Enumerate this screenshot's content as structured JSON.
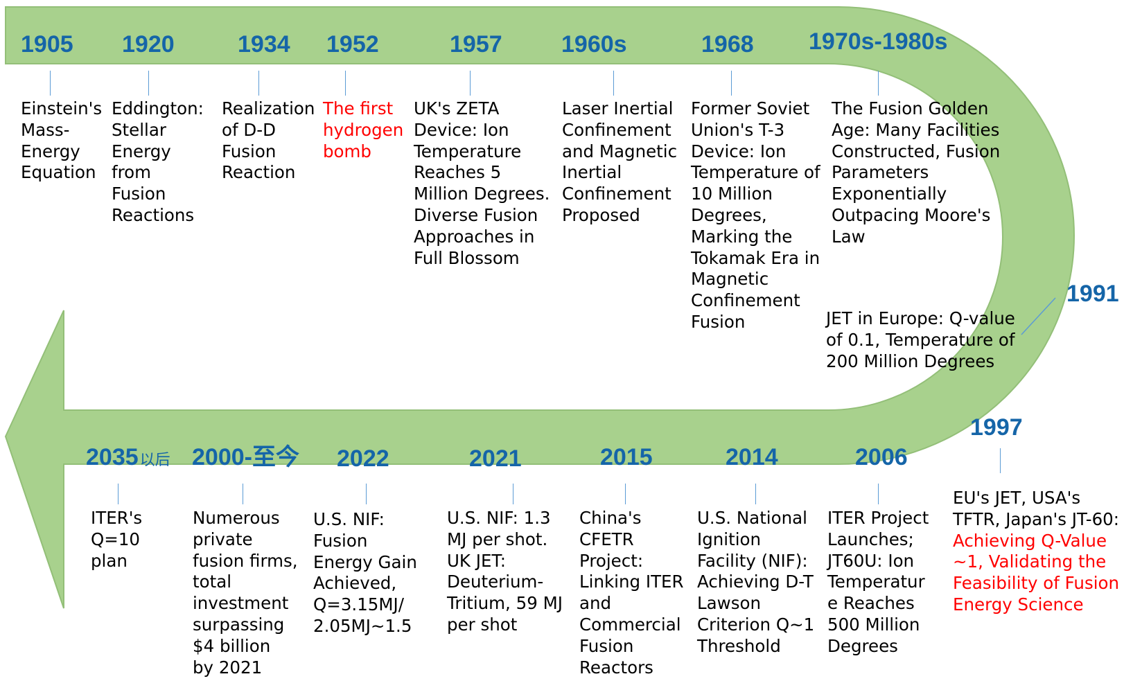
{
  "colors": {
    "band": "#a8d18d",
    "band_stroke": "#93bf78",
    "year": "#1565a8",
    "text": "#000000",
    "highlight": "#ff0000",
    "connector": "#5b9bd5"
  },
  "top_events": [
    {
      "year": "1905",
      "lines": [
        "Einstein's",
        "Mass-",
        "Energy",
        "Equation"
      ]
    },
    {
      "year": "1920",
      "lines": [
        "Eddington:",
        "Stellar",
        "Energy",
        "from",
        "Fusion",
        "Reactions"
      ]
    },
    {
      "year": "1934",
      "lines": [
        "Realization",
        "of D-D",
        "Fusion",
        "Reaction"
      ]
    },
    {
      "year": "1952",
      "lines": [
        "The first",
        "hydrogen",
        "bomb"
      ]
    },
    {
      "year": "1957",
      "lines": [
        "UK's ZETA",
        "Device: Ion",
        "Temperature",
        "Reaches 5",
        "Million Degrees.",
        "Diverse Fusion",
        "Approaches in",
        "Full Blossom"
      ]
    },
    {
      "year": "1960s",
      "lines": [
        "Laser Inertial",
        "Confinement",
        "and Magnetic",
        "Inertial",
        "Confinement",
        "Proposed"
      ]
    },
    {
      "year": "1968",
      "lines": [
        "Former Soviet",
        "Union's T-3",
        "Device: Ion",
        "Temperature of",
        "10 Million",
        "Degrees,",
        "Marking the",
        "Tokamak Era in",
        "Magnetic",
        "Confinement",
        "Fusion"
      ]
    },
    {
      "year": "1970s-1980s",
      "lines": [
        "The Fusion Golden",
        "Age: Many Facilities",
        "Constructed, Fusion",
        "Parameters",
        "Exponentially",
        "Outpacing Moore's",
        "Law"
      ]
    }
  ],
  "curve_events": [
    {
      "year": "1991",
      "lines": [
        "JET in Europe: Q-value",
        "of 0.1, Temperature of",
        "200 Million Degrees"
      ]
    },
    {
      "year": "1997",
      "lines": [
        "EU's JET, USA's",
        "TFTR, Japan's JT-60:"
      ],
      "highlight_lines": [
        "Achieving Q-Value",
        "~1, Validating the",
        "Feasibility of Fusion",
        "Energy Science"
      ]
    }
  ],
  "bottom_events": [
    {
      "year": "2035",
      "year_suffix": "以后",
      "lines": [
        "ITER's",
        "Q=10",
        "plan"
      ]
    },
    {
      "year": "2000-至今",
      "lines": [
        "Numerous",
        "private",
        "fusion firms,",
        "total",
        "investment",
        "surpassing",
        "$4 billion",
        "by 2021"
      ]
    },
    {
      "year": "2022",
      "lines": [
        "U.S. NIF:",
        "Fusion",
        "Energy Gain",
        "Achieved,",
        "Q=3.15MJ/",
        "2.05MJ~1.5"
      ]
    },
    {
      "year": "2021",
      "lines": [
        "U.S. NIF: 1.3",
        "MJ per shot.",
        "UK JET:",
        "Deuterium-",
        "Tritium, 59 MJ",
        "per shot"
      ]
    },
    {
      "year": "2015",
      "lines": [
        "China's",
        "CFETR",
        "Project:",
        "Linking ITER",
        "and",
        "Commercial",
        "Fusion",
        "Reactors"
      ]
    },
    {
      "year": "2014",
      "lines": [
        "U.S. National",
        "Ignition",
        "Facility (NIF):",
        "Achieving D-T",
        "Lawson",
        "Criterion Q~1",
        "Threshold"
      ]
    },
    {
      "year": "2006",
      "lines": [
        "ITER Project",
        "Launches;",
        "JT60U: Ion",
        "Temperatur",
        "e Reaches",
        "500 Million",
        "Degrees"
      ]
    }
  ]
}
